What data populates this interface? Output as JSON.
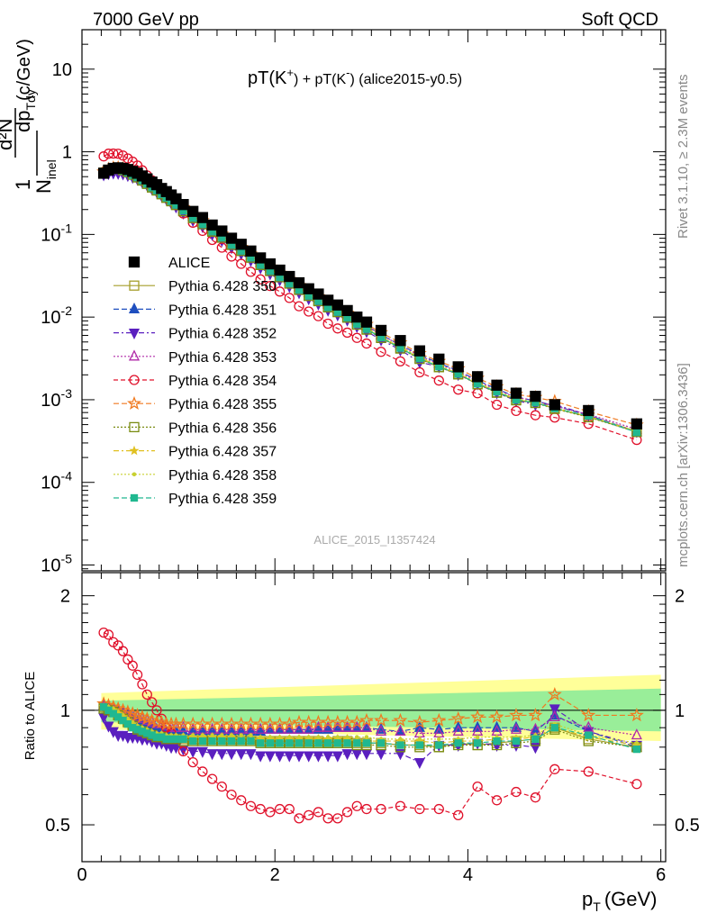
{
  "header": {
    "left": "7000 GeV pp",
    "right": "Soft QCD",
    "title_prefix": "pT(K",
    "title_kplus_sup": "+",
    "title_middle": ") + pT(K",
    "title_kminus_sup": "-",
    "title_suffix": ") (alice2015-y0.5)",
    "side_rivet": "Rivet 3.1.10, ≥ 2.3M events",
    "side_mcplots": "mcplots.cern.ch [arXiv:1306.3436]",
    "watermark": "ALICE_2015_I1357424"
  },
  "axes": {
    "ylabel_main_num": "1",
    "ylabel_main_den": "N",
    "ylabel_main_den_sub": "inel",
    "ylabel_main_frac_num": "d²N",
    "ylabel_main_frac_den": "dp",
    "ylabel_main_frac_den_sub": "Tdy",
    "ylabel_main_unit": "(c/GeV)",
    "ylabel_ratio": "Ratio to ALICE",
    "xlabel": "p",
    "xlabel_sub": "T",
    "xlabel_unit": "(GeV)",
    "x_ticks": [
      "0",
      "2",
      "4",
      "6"
    ],
    "y_main_ticks": [
      {
        "base": "10",
        "exp": "-5"
      },
      {
        "base": "10",
        "exp": "-4"
      },
      {
        "base": "10",
        "exp": "-3"
      },
      {
        "base": "10",
        "exp": "-2"
      },
      {
        "base": "10",
        "exp": "-1"
      },
      {
        "base": "1",
        "exp": ""
      },
      {
        "base": "10",
        "exp": ""
      }
    ],
    "y_ratio_ticks": [
      "0.5",
      "1",
      "2"
    ]
  },
  "chart_data": {
    "type": "scatter",
    "xlim": [
      0,
      6.05
    ],
    "ylim_main": [
      8.5e-06,
      30
    ],
    "ylim_ratio": [
      0.4,
      2.3
    ],
    "log_y_main": true,
    "legend_position": "left-middle",
    "x": [
      0.225,
      0.275,
      0.325,
      0.375,
      0.425,
      0.475,
      0.525,
      0.575,
      0.625,
      0.675,
      0.725,
      0.775,
      0.825,
      0.875,
      0.925,
      0.975,
      1.05,
      1.15,
      1.25,
      1.35,
      1.45,
      1.55,
      1.65,
      1.75,
      1.85,
      1.95,
      2.05,
      2.15,
      2.25,
      2.35,
      2.45,
      2.55,
      2.65,
      2.75,
      2.85,
      2.95,
      3.1,
      3.3,
      3.5,
      3.7,
      3.9,
      4.1,
      4.3,
      4.5,
      4.7,
      4.9,
      5.25,
      5.75
    ],
    "alice": [
      0.55,
      0.6,
      0.63,
      0.64,
      0.63,
      0.61,
      0.58,
      0.55,
      0.51,
      0.47,
      0.43,
      0.4,
      0.36,
      0.33,
      0.3,
      0.27,
      0.23,
      0.19,
      0.16,
      0.13,
      0.11,
      0.09,
      0.076,
      0.063,
      0.052,
      0.044,
      0.037,
      0.031,
      0.026,
      0.022,
      0.019,
      0.016,
      0.014,
      0.012,
      0.01,
      0.0087,
      0.0069,
      0.0052,
      0.0039,
      0.0031,
      0.0025,
      0.0019,
      0.0015,
      0.0012,
      0.0011,
      0.00087,
      0.00074,
      0.00051
    ],
    "ratio_band_inner": [
      0.91,
      1.08
    ],
    "ratio_band_outer": [
      0.83,
      1.24
    ],
    "series": [
      {
        "name": "Pythia 6.428 350",
        "color": "#a59e2a",
        "marker": "open-square",
        "dash": "",
        "ratio": [
          1.02,
          1.01,
          1.0,
          0.98,
          0.96,
          0.94,
          0.92,
          0.9,
          0.89,
          0.88,
          0.87,
          0.86,
          0.86,
          0.85,
          0.85,
          0.85,
          0.84,
          0.84,
          0.84,
          0.84,
          0.84,
          0.84,
          0.84,
          0.84,
          0.83,
          0.83,
          0.83,
          0.83,
          0.83,
          0.83,
          0.83,
          0.82,
          0.83,
          0.83,
          0.82,
          0.82,
          0.82,
          0.81,
          0.81,
          0.8,
          0.82,
          0.81,
          0.82,
          0.83,
          0.84,
          0.9,
          0.84,
          0.8
        ]
      },
      {
        "name": "Pythia 6.428 351",
        "color": "#1f4fbf",
        "marker": "triangle-up",
        "dash": "6,3",
        "ratio": [
          1.03,
          1.02,
          1.01,
          0.99,
          0.98,
          0.96,
          0.95,
          0.93,
          0.92,
          0.91,
          0.9,
          0.89,
          0.89,
          0.88,
          0.88,
          0.88,
          0.88,
          0.88,
          0.88,
          0.88,
          0.88,
          0.88,
          0.88,
          0.88,
          0.88,
          0.89,
          0.89,
          0.89,
          0.89,
          0.89,
          0.89,
          0.89,
          0.9,
          0.9,
          0.9,
          0.9,
          0.89,
          0.88,
          0.9,
          0.89,
          0.9,
          0.9,
          0.9,
          0.9,
          0.88,
          0.97,
          0.88,
          0.8
        ]
      },
      {
        "name": "Pythia 6.428 352",
        "color": "#5a1fbf",
        "marker": "triangle-down",
        "dash": "6,3,2,3",
        "ratio": [
          0.96,
          0.91,
          0.88,
          0.86,
          0.86,
          0.85,
          0.85,
          0.85,
          0.84,
          0.84,
          0.83,
          0.82,
          0.82,
          0.81,
          0.8,
          0.8,
          0.79,
          0.78,
          0.78,
          0.77,
          0.77,
          0.77,
          0.77,
          0.77,
          0.76,
          0.76,
          0.76,
          0.76,
          0.76,
          0.76,
          0.76,
          0.76,
          0.76,
          0.77,
          0.77,
          0.77,
          0.77,
          0.77,
          0.73,
          0.81,
          0.81,
          0.82,
          0.81,
          0.81,
          0.8,
          1.01,
          0.88,
          0.81
        ]
      },
      {
        "name": "Pythia 6.428 353",
        "color": "#b02aa8",
        "marker": "open-triangle",
        "dash": "2,2",
        "ratio": [
          1.03,
          1.02,
          1.01,
          1.0,
          0.99,
          0.98,
          0.97,
          0.96,
          0.95,
          0.94,
          0.93,
          0.92,
          0.92,
          0.91,
          0.9,
          0.9,
          0.9,
          0.89,
          0.89,
          0.89,
          0.89,
          0.89,
          0.89,
          0.89,
          0.89,
          0.89,
          0.89,
          0.89,
          0.89,
          0.89,
          0.9,
          0.9,
          0.9,
          0.9,
          0.9,
          0.9,
          0.88,
          0.88,
          0.87,
          0.87,
          0.88,
          0.88,
          0.88,
          0.89,
          0.89,
          0.96,
          0.9,
          0.86
        ]
      },
      {
        "name": "Pythia 6.428 354",
        "color": "#e0102a",
        "marker": "open-circle",
        "dash": "5,3",
        "ratio": [
          1.6,
          1.58,
          1.51,
          1.48,
          1.43,
          1.36,
          1.31,
          1.24,
          1.17,
          1.1,
          1.05,
          1.0,
          0.95,
          0.9,
          0.87,
          0.84,
          0.78,
          0.73,
          0.69,
          0.66,
          0.63,
          0.6,
          0.58,
          0.56,
          0.55,
          0.54,
          0.55,
          0.55,
          0.52,
          0.53,
          0.54,
          0.52,
          0.52,
          0.54,
          0.56,
          0.55,
          0.55,
          0.56,
          0.55,
          0.55,
          0.53,
          0.63,
          0.58,
          0.61,
          0.59,
          0.7,
          0.69,
          0.64
        ]
      },
      {
        "name": "Pythia 6.428 355",
        "color": "#f07a20",
        "marker": "open-star",
        "dash": "6,3",
        "ratio": [
          1.04,
          1.03,
          1.02,
          1.01,
          1.0,
          0.99,
          0.98,
          0.97,
          0.96,
          0.95,
          0.94,
          0.93,
          0.93,
          0.92,
          0.92,
          0.92,
          0.92,
          0.92,
          0.92,
          0.92,
          0.92,
          0.92,
          0.92,
          0.92,
          0.92,
          0.92,
          0.92,
          0.92,
          0.93,
          0.93,
          0.93,
          0.93,
          0.93,
          0.93,
          0.93,
          0.94,
          0.94,
          0.94,
          0.93,
          0.94,
          0.95,
          0.96,
          0.96,
          0.97,
          0.97,
          1.1,
          0.97,
          0.97
        ]
      },
      {
        "name": "Pythia 6.428 356",
        "color": "#7a8c12",
        "marker": "open-square",
        "dash": "2,2",
        "ratio": [
          1.01,
          1.0,
          0.99,
          0.97,
          0.95,
          0.93,
          0.91,
          0.89,
          0.88,
          0.87,
          0.86,
          0.85,
          0.85,
          0.84,
          0.84,
          0.84,
          0.83,
          0.83,
          0.83,
          0.83,
          0.83,
          0.83,
          0.83,
          0.83,
          0.82,
          0.82,
          0.82,
          0.82,
          0.82,
          0.82,
          0.82,
          0.82,
          0.82,
          0.82,
          0.81,
          0.81,
          0.81,
          0.8,
          0.8,
          0.8,
          0.81,
          0.81,
          0.81,
          0.82,
          0.83,
          0.89,
          0.83,
          0.8
        ]
      },
      {
        "name": "Pythia 6.428 357",
        "color": "#e0c020",
        "marker": "star",
        "dash": "6,3,2,3",
        "ratio": [
          1.02,
          1.01,
          1.0,
          0.98,
          0.96,
          0.94,
          0.92,
          0.9,
          0.89,
          0.88,
          0.87,
          0.86,
          0.86,
          0.85,
          0.85,
          0.85,
          0.85,
          0.85,
          0.85,
          0.85,
          0.85,
          0.85,
          0.84,
          0.84,
          0.84,
          0.84,
          0.84,
          0.84,
          0.84,
          0.84,
          0.84,
          0.84,
          0.84,
          0.84,
          0.83,
          0.83,
          0.83,
          0.83,
          0.83,
          0.82,
          0.83,
          0.83,
          0.84,
          0.84,
          0.85,
          0.9,
          0.85,
          0.81
        ]
      },
      {
        "name": "Pythia 6.428 358",
        "color": "#c8d030",
        "marker": "dot",
        "dash": "2,2",
        "ratio": [
          1.03,
          1.02,
          1.01,
          0.99,
          0.97,
          0.95,
          0.93,
          0.91,
          0.9,
          0.89,
          0.88,
          0.87,
          0.87,
          0.86,
          0.86,
          0.86,
          0.86,
          0.86,
          0.86,
          0.86,
          0.86,
          0.86,
          0.86,
          0.86,
          0.85,
          0.85,
          0.85,
          0.85,
          0.85,
          0.85,
          0.85,
          0.85,
          0.85,
          0.85,
          0.85,
          0.85,
          0.84,
          0.84,
          0.84,
          0.84,
          0.84,
          0.85,
          0.85,
          0.85,
          0.86,
          0.92,
          0.86,
          0.82
        ]
      },
      {
        "name": "Pythia 6.428 359",
        "color": "#20b890",
        "marker": "square",
        "dash": "6,3",
        "ratio": [
          1.02,
          1.0,
          0.98,
          0.96,
          0.94,
          0.92,
          0.9,
          0.89,
          0.88,
          0.87,
          0.86,
          0.85,
          0.85,
          0.84,
          0.84,
          0.84,
          0.84,
          0.83,
          0.83,
          0.83,
          0.83,
          0.83,
          0.83,
          0.83,
          0.82,
          0.82,
          0.82,
          0.82,
          0.82,
          0.82,
          0.82,
          0.82,
          0.82,
          0.82,
          0.82,
          0.82,
          0.82,
          0.81,
          0.81,
          0.81,
          0.82,
          0.82,
          0.83,
          0.83,
          0.84,
          0.9,
          0.86,
          0.79
        ]
      }
    ]
  }
}
